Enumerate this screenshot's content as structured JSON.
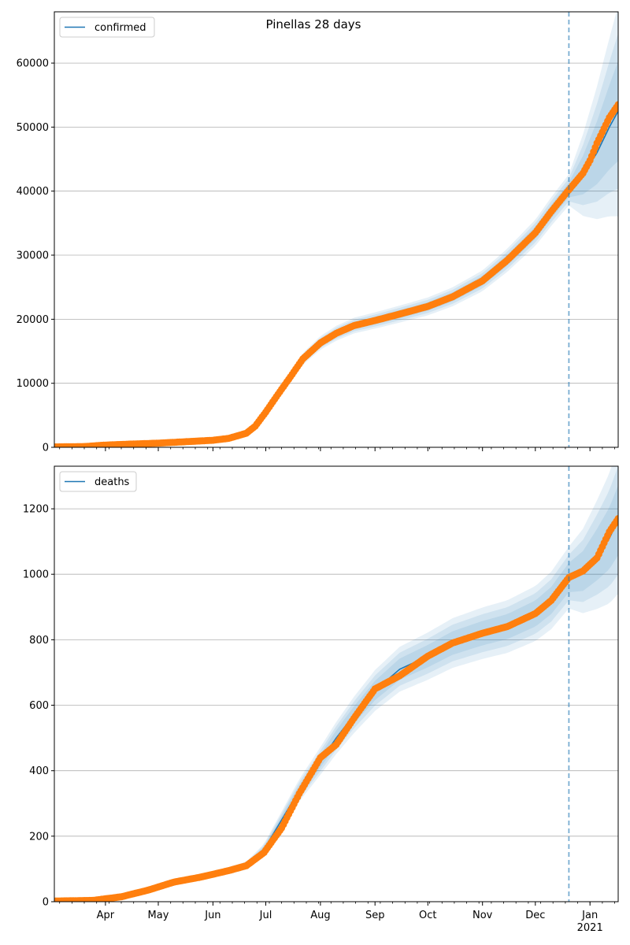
{
  "figure": {
    "title": "Pinellas 28 days"
  },
  "chart_data": [
    {
      "type": "line",
      "title": "Pinellas 28 days",
      "xlabel": "",
      "ylabel": "",
      "xlim": [
        "2020-03-03",
        "2021-01-17"
      ],
      "ylim": [
        0,
        68000
      ],
      "yticks": [
        0,
        10000,
        20000,
        30000,
        40000,
        50000,
        60000
      ],
      "xtick_labels": [],
      "grid": "horizontal",
      "legend": {
        "placement": "top-left",
        "entries": [
          "confirmed"
        ]
      },
      "vline": "2020-12-20",
      "colors": {
        "line": "#1f77b4",
        "points": "#ff7f0e",
        "band": "#1f77b4",
        "vline": "#1f77b4"
      },
      "series": [
        {
          "name": "confirmed",
          "x": [
            "2020-03-03",
            "2020-03-20",
            "2020-04-01",
            "2020-04-15",
            "2020-05-01",
            "2020-05-15",
            "2020-06-01",
            "2020-06-10",
            "2020-06-20",
            "2020-06-25",
            "2020-07-01",
            "2020-07-08",
            "2020-07-15",
            "2020-07-22",
            "2020-08-01",
            "2020-08-10",
            "2020-08-20",
            "2020-09-01",
            "2020-09-15",
            "2020-10-01",
            "2020-10-15",
            "2020-11-01",
            "2020-11-15",
            "2020-12-01",
            "2020-12-10",
            "2020-12-20",
            "2020-12-28",
            "2021-01-05",
            "2021-01-12",
            "2021-01-17"
          ],
          "values": [
            60,
            120,
            350,
            500,
            650,
            850,
            1100,
            1400,
            2200,
            3300,
            5500,
            8300,
            11000,
            13800,
            16300,
            17800,
            19000,
            19800,
            20800,
            22000,
            23500,
            26000,
            29200,
            33500,
            36800,
            40200,
            42500,
            46000,
            50000,
            52500
          ]
        },
        {
          "name": "",
          "markers": "points",
          "x": [
            "2020-03-03",
            "2020-03-20",
            "2020-04-01",
            "2020-04-15",
            "2020-05-01",
            "2020-05-15",
            "2020-06-01",
            "2020-06-10",
            "2020-06-20",
            "2020-06-25",
            "2020-07-01",
            "2020-07-08",
            "2020-07-15",
            "2020-07-22",
            "2020-08-01",
            "2020-08-10",
            "2020-08-20",
            "2020-09-01",
            "2020-09-15",
            "2020-10-01",
            "2020-10-15",
            "2020-11-01",
            "2020-11-15",
            "2020-12-01",
            "2020-12-10",
            "2020-12-20",
            "2020-12-28",
            "2021-01-01",
            "2021-01-05",
            "2021-01-12",
            "2021-01-17"
          ],
          "values": [
            60,
            120,
            350,
            500,
            650,
            850,
            1100,
            1400,
            2200,
            3300,
            5500,
            8300,
            11000,
            13800,
            16300,
            17800,
            19000,
            19800,
            20800,
            22000,
            23500,
            26000,
            29200,
            33500,
            36800,
            40200,
            42800,
            44800,
            47500,
            51500,
            53500
          ]
        }
      ]
    },
    {
      "type": "line",
      "title": "",
      "xlabel": "",
      "ylabel": "",
      "xlim": [
        "2020-03-03",
        "2021-01-17"
      ],
      "ylim": [
        0,
        1330
      ],
      "yticks": [
        0,
        200,
        400,
        600,
        800,
        1000,
        1200
      ],
      "xtick_labels": [
        "Apr",
        "May",
        "Jun",
        "Jul",
        "Aug",
        "Sep",
        "Oct",
        "Nov",
        "Dec",
        "Jan\n2021"
      ],
      "grid": "horizontal",
      "legend": {
        "placement": "top-left",
        "entries": [
          "deaths"
        ]
      },
      "vline": "2020-12-20",
      "colors": {
        "line": "#1f77b4",
        "points": "#ff7f0e",
        "band": "#1f77b4",
        "vline": "#1f77b4"
      },
      "series": [
        {
          "name": "deaths",
          "x": [
            "2020-03-03",
            "2020-03-25",
            "2020-04-10",
            "2020-04-25",
            "2020-05-10",
            "2020-05-25",
            "2020-06-10",
            "2020-06-20",
            "2020-06-30",
            "2020-07-10",
            "2020-07-20",
            "2020-08-01",
            "2020-08-10",
            "2020-08-20",
            "2020-09-01",
            "2020-09-15",
            "2020-10-01",
            "2020-10-15",
            "2020-11-01",
            "2020-11-15",
            "2020-12-01",
            "2020-12-10",
            "2020-12-20",
            "2020-12-28",
            "2021-01-05",
            "2021-01-12",
            "2021-01-17"
          ],
          "values": [
            2,
            4,
            15,
            35,
            60,
            75,
            95,
            110,
            160,
            250,
            340,
            430,
            500,
            570,
            645,
            710,
            750,
            790,
            820,
            840,
            880,
            920,
            990,
            1010,
            1060,
            1110,
            1165
          ]
        },
        {
          "name": "",
          "markers": "points",
          "x": [
            "2020-03-03",
            "2020-03-25",
            "2020-04-10",
            "2020-04-25",
            "2020-05-10",
            "2020-05-25",
            "2020-06-10",
            "2020-06-20",
            "2020-06-30",
            "2020-07-10",
            "2020-07-20",
            "2020-08-01",
            "2020-08-10",
            "2020-08-20",
            "2020-09-01",
            "2020-09-15",
            "2020-10-01",
            "2020-10-15",
            "2020-11-01",
            "2020-11-15",
            "2020-12-01",
            "2020-12-10",
            "2020-12-20",
            "2020-12-28",
            "2021-01-05",
            "2021-01-12",
            "2021-01-17"
          ],
          "values": [
            2,
            4,
            15,
            35,
            60,
            75,
            95,
            110,
            150,
            225,
            330,
            440,
            480,
            560,
            650,
            690,
            750,
            790,
            820,
            840,
            880,
            920,
            990,
            1010,
            1050,
            1130,
            1170
          ]
        }
      ]
    }
  ]
}
